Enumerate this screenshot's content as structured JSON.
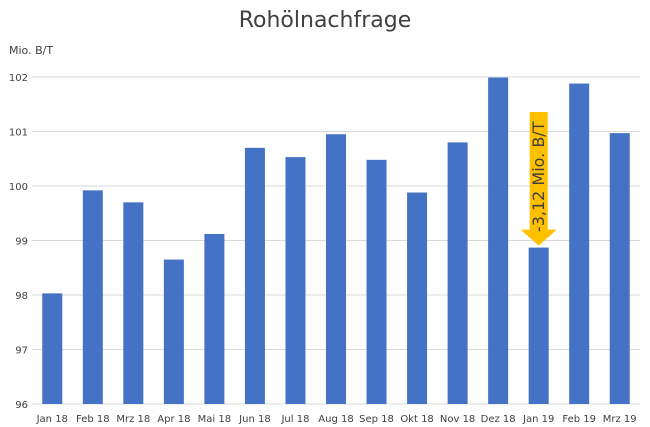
{
  "chart_data": {
    "type": "bar",
    "title": "Rohölnachfrage",
    "ylabel": "Mio. B/T",
    "xlabel": "",
    "ylim": [
      96,
      102
    ],
    "yticks": [
      96,
      97,
      98,
      99,
      100,
      101,
      102
    ],
    "grid": true,
    "categories": [
      "Jan 18",
      "Feb 18",
      "Mrz 18",
      "Apr 18",
      "Mai 18",
      "Jun 18",
      "Jul 18",
      "Aug 18",
      "Sep 18",
      "Okt 18",
      "Nov 18",
      "Dez 18",
      "Jan 19",
      "Feb 19",
      "Mrz 19"
    ],
    "values": [
      98.03,
      99.92,
      99.7,
      98.65,
      99.12,
      100.7,
      100.53,
      100.95,
      100.48,
      99.88,
      100.8,
      101.99,
      98.87,
      101.88,
      100.97
    ],
    "annotation": {
      "text": "-3,12 Mio. B/T",
      "category": "Jan 19",
      "arrow_color": "#FFC000"
    },
    "colors": {
      "bar": "#4472C4",
      "grid": "#D9D9D9",
      "text": "#404040"
    }
  }
}
